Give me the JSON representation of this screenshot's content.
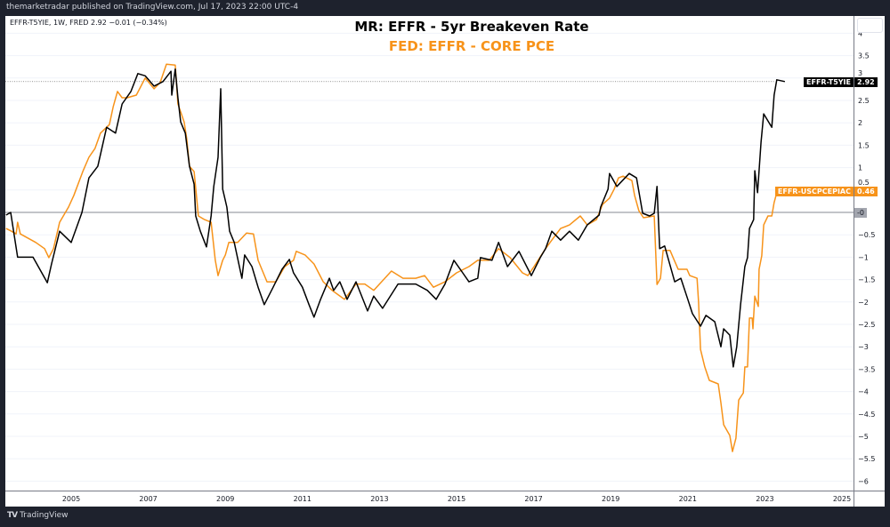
{
  "header": {
    "published": "themarketradar published on TradingView.com, Jul 17, 2023 22:00 UTC-4"
  },
  "legend": {
    "text": "EFFR-T5YIE, 1W, FRED  2.92  −0.01 (−0.34%)"
  },
  "footer": {
    "brand": "TradingView",
    "logo_icon": "tradingview-logo-icon"
  },
  "colors": {
    "black_series": "#000000",
    "orange_series": "#f7931a",
    "background": "#1e222d",
    "zero_line": "#868993"
  },
  "chart_data": {
    "type": "line",
    "title": "MR: EFFR - 5yr Breakeven Rate",
    "subtitle": "FED: EFFR - CORE PCE",
    "xlabel": "",
    "ylabel": "",
    "ylim": [
      -6.2,
      4.3
    ],
    "xlim": [
      2003.3,
      2026.1
    ],
    "grid": "horizontal",
    "x_ticks": [
      "2005",
      "2007",
      "2009",
      "2011",
      "2013",
      "2015",
      "2017",
      "2019",
      "2021",
      "2023",
      "2025"
    ],
    "y_ticks": [
      "4",
      "3.5",
      "3",
      "2.5",
      "2",
      "1.5",
      "1",
      "0.5",
      "-0",
      "-0.5",
      "-1",
      "-1.5",
      "-2",
      "-2.5",
      "-3",
      "-3.5",
      "-4",
      "-4.5",
      "-5",
      "-5.5",
      "-6"
    ],
    "zero_label": "-0",
    "series": [
      {
        "name": "EFFR-T5YIE",
        "color": "#000000",
        "last_value": "2.92",
        "points": [
          [
            2003.31,
            -0.06
          ],
          [
            2003.43,
            0
          ],
          [
            2003.61,
            -1.0
          ],
          [
            2004.01,
            -1.0
          ],
          [
            2004.38,
            -1.57
          ],
          [
            2004.49,
            -1.15
          ],
          [
            2004.7,
            -0.42
          ],
          [
            2005.0,
            -0.67
          ],
          [
            2005.28,
            0
          ],
          [
            2005.46,
            0.77
          ],
          [
            2005.69,
            1.03
          ],
          [
            2005.92,
            1.9
          ],
          [
            2006.15,
            1.77
          ],
          [
            2006.32,
            2.42
          ],
          [
            2006.55,
            2.7
          ],
          [
            2006.73,
            3.1
          ],
          [
            2006.92,
            3.05
          ],
          [
            2007.15,
            2.82
          ],
          [
            2007.38,
            2.92
          ],
          [
            2007.59,
            3.15
          ],
          [
            2007.61,
            2.62
          ],
          [
            2007.7,
            3.2
          ],
          [
            2007.77,
            2.56
          ],
          [
            2007.84,
            2.02
          ],
          [
            2007.96,
            1.77
          ],
          [
            2008.07,
            1.03
          ],
          [
            2008.19,
            0.63
          ],
          [
            2008.23,
            -0.08
          ],
          [
            2008.35,
            -0.42
          ],
          [
            2008.51,
            -0.77
          ],
          [
            2008.63,
            -0.08
          ],
          [
            2008.7,
            0.58
          ],
          [
            2008.81,
            1.23
          ],
          [
            2008.88,
            2.76
          ],
          [
            2008.93,
            0.52
          ],
          [
            2009.04,
            0.12
          ],
          [
            2009.11,
            -0.42
          ],
          [
            2009.23,
            -0.67
          ],
          [
            2009.43,
            -1.47
          ],
          [
            2009.5,
            -0.95
          ],
          [
            2009.69,
            -1.21
          ],
          [
            2009.85,
            -1.67
          ],
          [
            2010.01,
            -2.06
          ],
          [
            2010.24,
            -1.67
          ],
          [
            2010.47,
            -1.27
          ],
          [
            2010.66,
            -1.05
          ],
          [
            2010.77,
            -1.35
          ],
          [
            2011.0,
            -1.67
          ],
          [
            2011.17,
            -2.06
          ],
          [
            2011.3,
            -2.34
          ],
          [
            2011.47,
            -1.94
          ],
          [
            2011.7,
            -1.47
          ],
          [
            2011.81,
            -1.74
          ],
          [
            2011.97,
            -1.55
          ],
          [
            2012.16,
            -1.94
          ],
          [
            2012.39,
            -1.55
          ],
          [
            2012.69,
            -2.2
          ],
          [
            2012.85,
            -1.87
          ],
          [
            2013.08,
            -2.14
          ],
          [
            2013.48,
            -1.6
          ],
          [
            2013.94,
            -1.6
          ],
          [
            2014.24,
            -1.74
          ],
          [
            2014.47,
            -1.94
          ],
          [
            2014.7,
            -1.6
          ],
          [
            2014.93,
            -1.07
          ],
          [
            2015.16,
            -1.35
          ],
          [
            2015.32,
            -1.55
          ],
          [
            2015.55,
            -1.47
          ],
          [
            2015.62,
            -1.01
          ],
          [
            2015.92,
            -1.07
          ],
          [
            2016.09,
            -0.67
          ],
          [
            2016.32,
            -1.21
          ],
          [
            2016.62,
            -0.87
          ],
          [
            2016.94,
            -1.41
          ],
          [
            2017.17,
            -1.01
          ],
          [
            2017.31,
            -0.81
          ],
          [
            2017.47,
            -0.42
          ],
          [
            2017.7,
            -0.62
          ],
          [
            2017.93,
            -0.42
          ],
          [
            2018.16,
            -0.62
          ],
          [
            2018.39,
            -0.28
          ],
          [
            2018.7,
            -0.06
          ],
          [
            2018.74,
            0.12
          ],
          [
            2018.93,
            0.52
          ],
          [
            2018.97,
            0.87
          ],
          [
            2019.16,
            0.58
          ],
          [
            2019.48,
            0.87
          ],
          [
            2019.67,
            0.77
          ],
          [
            2019.83,
            -0.02
          ],
          [
            2020.01,
            -0.08
          ],
          [
            2020.13,
            -0.02
          ],
          [
            2020.2,
            0.58
          ],
          [
            2020.27,
            -0.81
          ],
          [
            2020.4,
            -0.75
          ],
          [
            2020.66,
            -1.55
          ],
          [
            2020.82,
            -1.47
          ],
          [
            2021.0,
            -1.94
          ],
          [
            2021.12,
            -2.26
          ],
          [
            2021.33,
            -2.54
          ],
          [
            2021.47,
            -2.3
          ],
          [
            2021.7,
            -2.44
          ],
          [
            2021.86,
            -3.0
          ],
          [
            2021.93,
            -2.6
          ],
          [
            2022.09,
            -2.74
          ],
          [
            2022.18,
            -3.45
          ],
          [
            2022.27,
            -3.0
          ],
          [
            2022.37,
            -2.06
          ],
          [
            2022.48,
            -1.21
          ],
          [
            2022.55,
            -1.01
          ],
          [
            2022.6,
            -0.36
          ],
          [
            2022.71,
            -0.16
          ],
          [
            2022.74,
            0.93
          ],
          [
            2022.81,
            0.44
          ],
          [
            2022.9,
            1.57
          ],
          [
            2022.97,
            2.2
          ],
          [
            2023.18,
            1.9
          ],
          [
            2023.24,
            2.62
          ],
          [
            2023.31,
            2.96
          ],
          [
            2023.52,
            2.92
          ]
        ]
      },
      {
        "name": "EFFR-USCPCEPIAC",
        "color": "#f7931a",
        "last_value": "0.46",
        "points": [
          [
            2003.31,
            -0.36
          ],
          [
            2003.45,
            -0.42
          ],
          [
            2003.57,
            -0.48
          ],
          [
            2003.61,
            -0.22
          ],
          [
            2003.68,
            -0.48
          ],
          [
            2004.08,
            -0.67
          ],
          [
            2004.31,
            -0.81
          ],
          [
            2004.42,
            -1.01
          ],
          [
            2004.54,
            -0.81
          ],
          [
            2004.7,
            -0.22
          ],
          [
            2004.93,
            0.12
          ],
          [
            2005.07,
            0.38
          ],
          [
            2005.3,
            0.91
          ],
          [
            2005.46,
            1.23
          ],
          [
            2005.62,
            1.43
          ],
          [
            2005.76,
            1.77
          ],
          [
            2005.99,
            1.96
          ],
          [
            2006.09,
            2.36
          ],
          [
            2006.2,
            2.7
          ],
          [
            2006.32,
            2.56
          ],
          [
            2006.45,
            2.56
          ],
          [
            2006.69,
            2.62
          ],
          [
            2006.92,
            3.0
          ],
          [
            2007.15,
            2.76
          ],
          [
            2007.31,
            2.9
          ],
          [
            2007.47,
            3.31
          ],
          [
            2007.7,
            3.29
          ],
          [
            2007.77,
            2.42
          ],
          [
            2007.93,
            2.02
          ],
          [
            2008.0,
            1.63
          ],
          [
            2008.07,
            1.03
          ],
          [
            2008.19,
            0.91
          ],
          [
            2008.3,
            -0.08
          ],
          [
            2008.46,
            -0.16
          ],
          [
            2008.63,
            -0.22
          ],
          [
            2008.74,
            -1.07
          ],
          [
            2008.81,
            -1.41
          ],
          [
            2008.93,
            -1.07
          ],
          [
            2009.0,
            -0.95
          ],
          [
            2009.09,
            -0.67
          ],
          [
            2009.32,
            -0.67
          ],
          [
            2009.55,
            -0.46
          ],
          [
            2009.73,
            -0.48
          ],
          [
            2009.85,
            -1.07
          ],
          [
            2010.08,
            -1.55
          ],
          [
            2010.31,
            -1.55
          ],
          [
            2010.54,
            -1.21
          ],
          [
            2010.77,
            -1.07
          ],
          [
            2010.84,
            -0.87
          ],
          [
            2011.07,
            -0.95
          ],
          [
            2011.3,
            -1.15
          ],
          [
            2011.54,
            -1.55
          ],
          [
            2011.77,
            -1.74
          ],
          [
            2012.09,
            -1.94
          ],
          [
            2012.39,
            -1.6
          ],
          [
            2012.62,
            -1.6
          ],
          [
            2012.85,
            -1.74
          ],
          [
            2013.31,
            -1.31
          ],
          [
            2013.61,
            -1.47
          ],
          [
            2013.94,
            -1.47
          ],
          [
            2014.17,
            -1.41
          ],
          [
            2014.4,
            -1.67
          ],
          [
            2014.7,
            -1.55
          ],
          [
            2015.0,
            -1.35
          ],
          [
            2015.32,
            -1.21
          ],
          [
            2015.55,
            -1.07
          ],
          [
            2015.85,
            -1.07
          ],
          [
            2016.09,
            -0.81
          ],
          [
            2016.39,
            -1.01
          ],
          [
            2016.71,
            -1.35
          ],
          [
            2016.85,
            -1.41
          ],
          [
            2017.01,
            -1.21
          ],
          [
            2017.31,
            -0.81
          ],
          [
            2017.47,
            -0.62
          ],
          [
            2017.7,
            -0.36
          ],
          [
            2017.93,
            -0.28
          ],
          [
            2018.21,
            -0.08
          ],
          [
            2018.39,
            -0.28
          ],
          [
            2018.63,
            -0.16
          ],
          [
            2018.79,
            0.18
          ],
          [
            2018.97,
            0.32
          ],
          [
            2019.09,
            0.52
          ],
          [
            2019.2,
            0.77
          ],
          [
            2019.32,
            0.81
          ],
          [
            2019.55,
            0.71
          ],
          [
            2019.62,
            0.38
          ],
          [
            2019.73,
            0.04
          ],
          [
            2019.85,
            -0.12
          ],
          [
            2020.13,
            -0.08
          ],
          [
            2020.2,
            -1.61
          ],
          [
            2020.29,
            -1.47
          ],
          [
            2020.36,
            -0.85
          ],
          [
            2020.54,
            -0.85
          ],
          [
            2020.64,
            -1.05
          ],
          [
            2020.75,
            -1.27
          ],
          [
            2020.98,
            -1.27
          ],
          [
            2021.05,
            -1.41
          ],
          [
            2021.24,
            -1.47
          ],
          [
            2021.28,
            -2.0
          ],
          [
            2021.33,
            -3.06
          ],
          [
            2021.44,
            -3.45
          ],
          [
            2021.56,
            -3.75
          ],
          [
            2021.79,
            -3.83
          ],
          [
            2021.86,
            -4.25
          ],
          [
            2021.93,
            -4.74
          ],
          [
            2022.09,
            -4.98
          ],
          [
            2022.16,
            -5.34
          ],
          [
            2022.25,
            -5.04
          ],
          [
            2022.32,
            -4.19
          ],
          [
            2022.44,
            -4.03
          ],
          [
            2022.48,
            -3.45
          ],
          [
            2022.55,
            -3.45
          ],
          [
            2022.6,
            -2.36
          ],
          [
            2022.67,
            -2.36
          ],
          [
            2022.69,
            -2.6
          ],
          [
            2022.74,
            -1.87
          ],
          [
            2022.83,
            -2.1
          ],
          [
            2022.85,
            -1.27
          ],
          [
            2022.92,
            -0.97
          ],
          [
            2022.97,
            -0.28
          ],
          [
            2023.08,
            -0.08
          ],
          [
            2023.18,
            -0.08
          ],
          [
            2023.24,
            0.22
          ],
          [
            2023.31,
            0.44
          ],
          [
            2023.52,
            0.46
          ]
        ]
      }
    ]
  }
}
